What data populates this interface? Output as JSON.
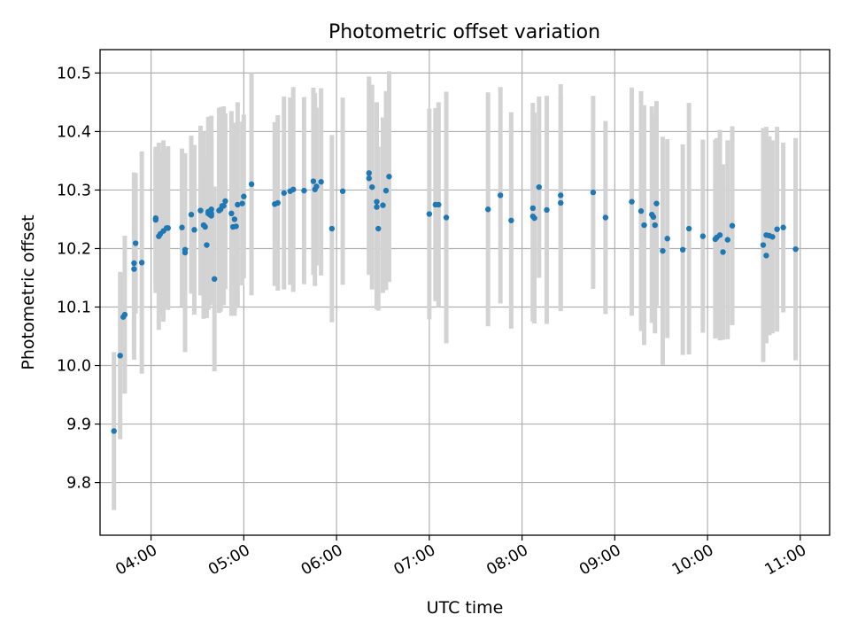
{
  "chart_data": {
    "type": "scatter",
    "title": "Photometric offset variation",
    "xlabel": "UTC time",
    "ylabel": "Photometric offset",
    "x_unit": "hours UTC",
    "xlim": [
      "03:27",
      "11:19"
    ],
    "ylim": [
      9.71,
      10.54
    ],
    "x_ticks": [
      "04:00",
      "05:00",
      "06:00",
      "07:00",
      "08:00",
      "09:00",
      "10:00",
      "11:00"
    ],
    "y_ticks": [
      "9.8",
      "9.9",
      "10.0",
      "10.1",
      "10.2",
      "10.3",
      "10.4",
      "10.5"
    ],
    "grid": true,
    "colors": {
      "points": "#1f77b4",
      "errorbars": "#d3d3d3"
    },
    "series": [
      {
        "x": [
          "03:36",
          "03:40",
          "03:42",
          "03:43",
          "03:49",
          "03:49",
          "03:50",
          "03:54",
          "04:03",
          "04:03",
          "04:05",
          "04:06",
          "04:08",
          "04:10",
          "04:11",
          "04:20",
          "04:22",
          "04:22",
          "04:26",
          "04:28",
          "04:32",
          "04:34",
          "04:35",
          "04:36",
          "04:37",
          "04:37",
          "04:38",
          "04:39",
          "04:39",
          "04:39",
          "04:41",
          "04:44",
          "04:45",
          "04:46",
          "04:47",
          "04:48",
          "04:52",
          "04:53",
          "04:54",
          "04:55",
          "04:56",
          "04:59",
          "05:00",
          "05:05",
          "05:20",
          "05:22",
          "05:26",
          "05:30",
          "05:32",
          "05:39",
          "05:45",
          "05:46",
          "05:47",
          "05:50",
          "05:57",
          "06:04",
          "06:21",
          "06:21",
          "06:23",
          "06:26",
          "06:26",
          "06:27",
          "06:30",
          "06:32",
          "06:34",
          "07:00",
          "07:04",
          "07:06",
          "07:11",
          "07:38",
          "07:46",
          "07:53",
          "08:07",
          "08:07",
          "08:08",
          "08:11",
          "08:16",
          "08:25",
          "08:25",
          "08:46",
          "08:54",
          "09:11",
          "09:17",
          "09:19",
          "09:24",
          "09:25",
          "09:26",
          "09:27",
          "09:31",
          "09:34",
          "09:44",
          "09:48",
          "09:57",
          "10:05",
          "10:06",
          "10:08",
          "10:10",
          "10:13",
          "10:16",
          "10:36",
          "10:38",
          "10:38",
          "10:40",
          "10:42",
          "10:45",
          "10:49",
          "10:57"
        ],
        "y": [
          9.888,
          10.017,
          10.083,
          10.087,
          10.165,
          10.175,
          10.209,
          10.176,
          10.249,
          10.252,
          10.221,
          10.225,
          10.23,
          10.235,
          10.235,
          10.236,
          10.193,
          10.198,
          10.258,
          10.232,
          10.265,
          10.24,
          10.237,
          10.206,
          10.26,
          10.263,
          10.258,
          10.267,
          10.26,
          10.256,
          10.148,
          10.265,
          10.267,
          10.273,
          10.273,
          10.281,
          10.26,
          10.237,
          10.25,
          10.238,
          10.275,
          10.277,
          10.289,
          10.31,
          10.276,
          10.278,
          10.295,
          10.298,
          10.301,
          10.299,
          10.315,
          10.301,
          10.306,
          10.314,
          10.234,
          10.298,
          10.329,
          10.32,
          10.305,
          10.271,
          10.28,
          10.234,
          10.274,
          10.299,
          10.323,
          10.259,
          10.275,
          10.275,
          10.253,
          10.267,
          10.291,
          10.248,
          10.269,
          10.255,
          10.252,
          10.305,
          10.266,
          10.278,
          10.291,
          10.296,
          10.253,
          10.28,
          10.264,
          10.24,
          10.258,
          10.254,
          10.24,
          10.277,
          10.196,
          10.217,
          10.198,
          10.234,
          10.221,
          10.216,
          10.219,
          10.223,
          10.194,
          10.215,
          10.239,
          10.206,
          10.223,
          10.188,
          10.222,
          10.22,
          10.233,
          10.236,
          10.199
        ],
        "yerr": [
          0.135,
          0.143,
          0.075,
          0.135,
          0.155,
          0.155,
          0.12,
          0.19,
          0.125,
          0.115,
          0.16,
          0.14,
          0.155,
          0.135,
          0.14,
          0.135,
          0.17,
          0.16,
          0.135,
          0.145,
          0.145,
          0.16,
          0.12,
          0.125,
          0.165,
          0.135,
          0.155,
          0.16,
          0.13,
          0.135,
          0.158,
          0.175,
          0.175,
          0.165,
          0.17,
          0.15,
          0.175,
          0.15,
          0.165,
          0.14,
          0.175,
          0.14,
          0.14,
          0.19,
          0.14,
          0.15,
          0.165,
          0.16,
          0.175,
          0.16,
          0.16,
          0.165,
          0.135,
          0.16,
          0.16,
          0.16,
          0.165,
          0.165,
          0.175,
          0.175,
          0.17,
          0.14,
          0.15,
          0.17,
          0.18,
          0.18,
          0.165,
          0.175,
          0.215,
          0.2,
          0.185,
          0.185,
          0.18,
          0.18,
          0.18,
          0.155,
          0.195,
          0.185,
          0.19,
          0.165,
          0.165,
          0.195,
          0.205,
          0.205,
          0.185,
          0.175,
          0.185,
          0.175,
          0.195,
          0.17,
          0.18,
          0.215,
          0.165,
          0.17,
          0.17,
          0.18,
          0.15,
          0.17,
          0.17,
          0.2,
          0.185,
          0.15,
          0.17,
          0.165,
          0.175,
          0.145,
          0.19
        ]
      }
    ]
  }
}
